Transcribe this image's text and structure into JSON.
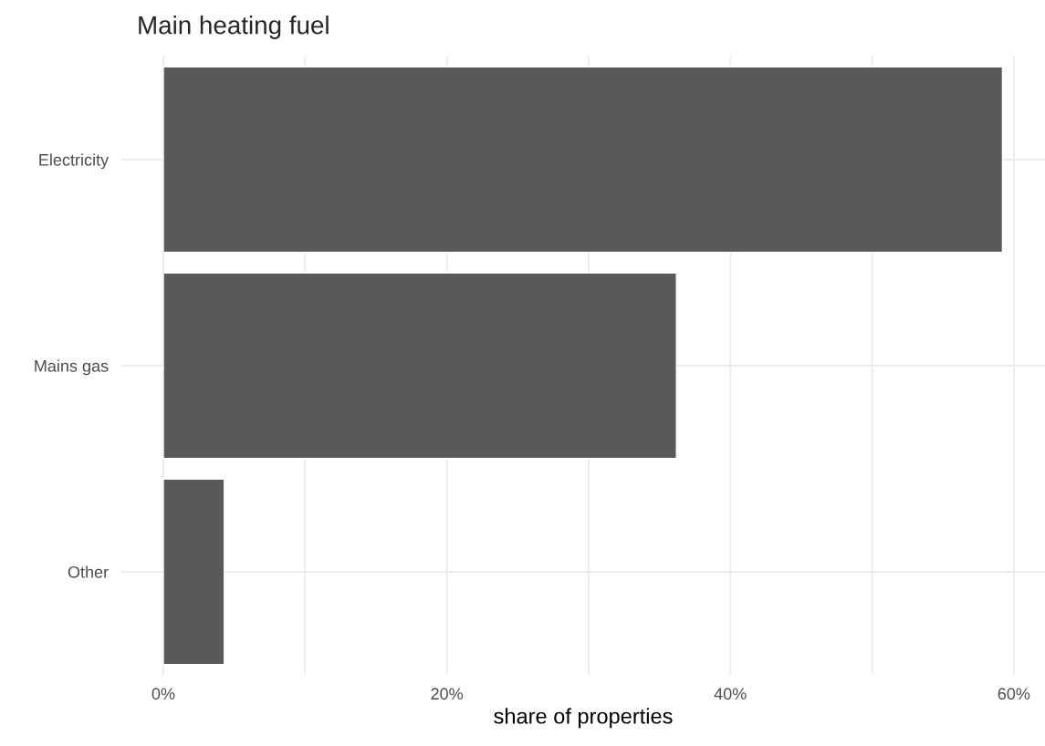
{
  "chart_data": {
    "type": "bar",
    "orientation": "horizontal",
    "title": "Main heating fuel",
    "xlabel": "share of properties",
    "categories": [
      "Electricity",
      "Mains gas",
      "Other"
    ],
    "values": [
      59.2,
      36.2,
      4.3
    ],
    "color": "#595959",
    "xlim": [
      -2.96,
      62.2
    ],
    "xticks": [
      {
        "value": 0,
        "label": "0%"
      },
      {
        "value": 10,
        "label": null
      },
      {
        "value": 20,
        "label": "20%"
      },
      {
        "value": 30,
        "label": null
      },
      {
        "value": 40,
        "label": "40%"
      },
      {
        "value": 50,
        "label": null
      },
      {
        "value": 60,
        "label": "60%"
      }
    ],
    "grid": true
  }
}
